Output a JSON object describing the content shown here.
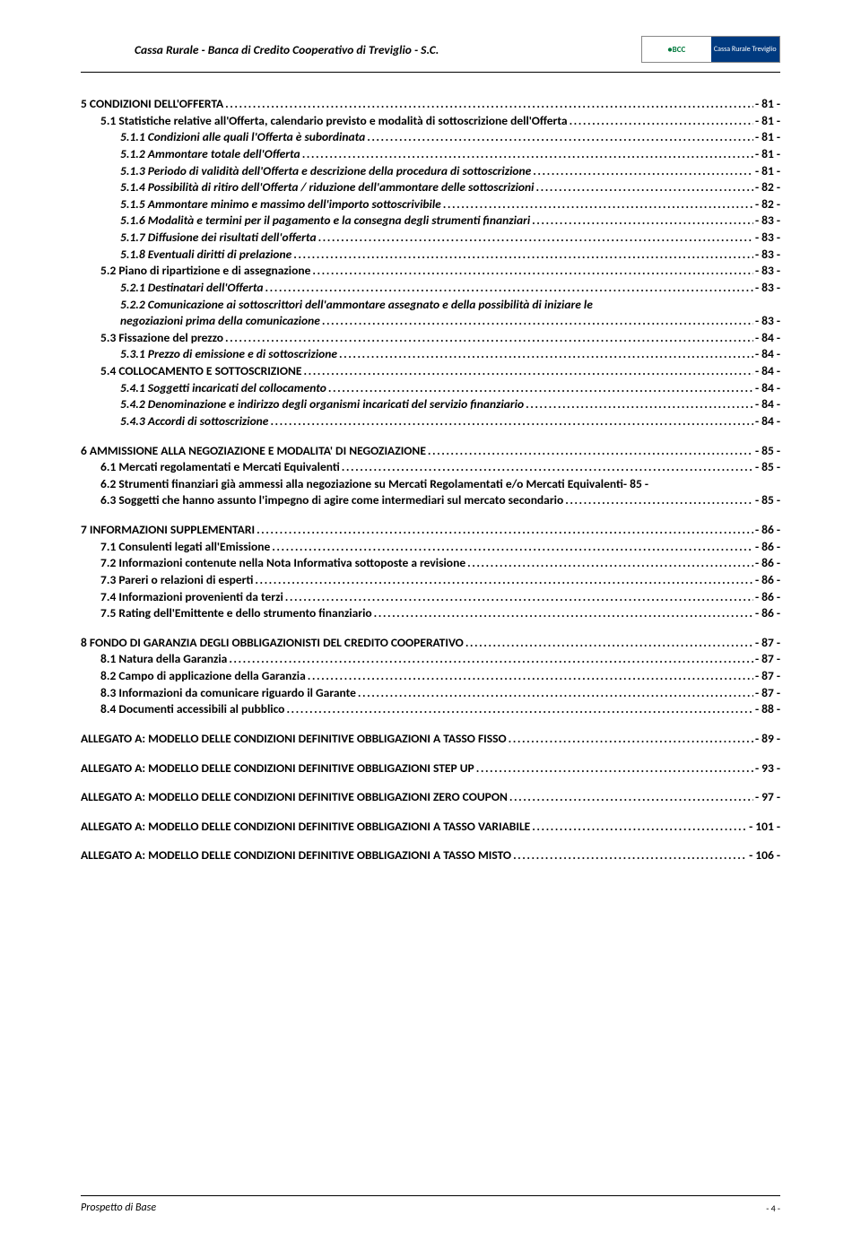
{
  "header": {
    "company": "Cassa Rurale - Banca di Credito Cooperativo di Treviglio - S.C.",
    "logo_left": "●BCC",
    "logo_right": "Cassa Rurale Treviglio"
  },
  "toc": [
    {
      "type": "group",
      "lines": [
        {
          "level": 0,
          "style": "sc",
          "label": "5 CONDIZIONI DELL'OFFERTA",
          "page": "- 81 -"
        },
        {
          "level": 1,
          "label": "5.1 Statistiche relative all'Offerta, calendario previsto e modalità di sottoscrizione dell'Offerta",
          "page": "- 81 -"
        },
        {
          "level": 2,
          "style": "italic",
          "label": "5.1.1 Condizioni alle quali l'Offerta è subordinata",
          "page": "- 81 -"
        },
        {
          "level": 2,
          "style": "italic",
          "label": "5.1.2 Ammontare totale dell'Offerta",
          "page": "- 81 -"
        },
        {
          "level": 2,
          "style": "italic",
          "label": "5.1.3 Periodo di validità dell'Offerta e descrizione della procedura di sottoscrizione",
          "page": "- 81 -"
        },
        {
          "level": 2,
          "style": "italic",
          "label": "5.1.4 Possibilità di ritiro dell'Offerta / riduzione dell'ammontare delle sottoscrizioni",
          "page": "- 82 -"
        },
        {
          "level": 2,
          "style": "italic",
          "label": "5.1.5 Ammontare minimo e massimo dell'importo sottoscrivibile",
          "page": "- 82 -"
        },
        {
          "level": 2,
          "style": "italic",
          "label": "5.1.6 Modalità e termini per il pagamento e la consegna degli strumenti finanziari",
          "page": "- 83 -"
        },
        {
          "level": 2,
          "style": "italic",
          "label": "5.1.7 Diffusione dei risultati dell'offerta",
          "page": "- 83 -"
        },
        {
          "level": 2,
          "style": "italic",
          "label": "5.1.8 Eventuali diritti di prelazione",
          "page": "- 83 -"
        },
        {
          "level": 1,
          "label": "5.2 Piano di ripartizione e di assegnazione",
          "page": "- 83 -"
        },
        {
          "level": 2,
          "style": "italic",
          "label": "5.2.1 Destinatari dell'Offerta",
          "page": "- 83 -"
        },
        {
          "level": 2,
          "style": "italic-multi",
          "first": "5.2.2 Comunicazione ai sottoscrittori dell'ammontare assegnato e della possibilità di iniziare le",
          "cont": "negoziazioni prima della comunicazione",
          "page": "- 83 -"
        },
        {
          "level": 1,
          "label": "5.3 Fissazione del prezzo",
          "page": "- 84 -"
        },
        {
          "level": 2,
          "style": "italic",
          "label": "5.3.1 Prezzo di emissione e di sottoscrizione",
          "page": "- 84 -"
        },
        {
          "level": 1,
          "style": "sc",
          "label": "5.4 COLLOCAMENTO E SOTTOSCRIZIONE",
          "page": "- 84 -"
        },
        {
          "level": 2,
          "style": "italic",
          "label": "5.4.1 Soggetti incaricati del collocamento",
          "page": "- 84 -"
        },
        {
          "level": 2,
          "style": "italic",
          "label": "5.4.2 Denominazione e indirizzo degli organismi incaricati del servizio finanziario",
          "page": "- 84 -"
        },
        {
          "level": 2,
          "style": "italic",
          "label": "5.4.3 Accordi di sottoscrizione",
          "page": "- 84 -"
        }
      ]
    },
    {
      "type": "group",
      "lines": [
        {
          "level": 0,
          "label": "6 AMMISSIONE ALLA NEGOZIAZIONE E MODALITA' DI NEGOZIAZIONE",
          "page": "- 85 -"
        },
        {
          "level": 1,
          "label": "6.1 Mercati regolamentati e Mercati Equivalenti",
          "page": "- 85 -"
        },
        {
          "level": 1,
          "label": "6.2 Strumenti finanziari già ammessi alla negoziazione su Mercati Regolamentati e/o Mercati Equivalenti",
          "page": "- 85 -",
          "nodots": true
        },
        {
          "level": 1,
          "label": "6.3 Soggetti che hanno assunto l'impegno di agire come intermediari sul mercato secondario",
          "page": "- 85 -"
        }
      ]
    },
    {
      "type": "group",
      "lines": [
        {
          "level": 0,
          "label": "7 INFORMAZIONI SUPPLEMENTARI",
          "page": "- 86 -"
        },
        {
          "level": 1,
          "label": "7.1 Consulenti legati all'Emissione",
          "page": "- 86 -"
        },
        {
          "level": 1,
          "label": "7.2 Informazioni contenute nella Nota Informativa sottoposte a revisione",
          "page": "- 86 -"
        },
        {
          "level": 1,
          "label": "7.3 Pareri o relazioni di esperti",
          "page": "- 86 -"
        },
        {
          "level": 1,
          "label": "7.4 Informazioni provenienti da terzi",
          "page": "- 86 -"
        },
        {
          "level": 1,
          "label": "7.5 Rating dell'Emittente e dello strumento finanziario",
          "page": "- 86 -"
        }
      ]
    },
    {
      "type": "group",
      "lines": [
        {
          "level": 0,
          "label": "8 FONDO DI GARANZIA DEGLI OBBLIGAZIONISTI DEL CREDITO COOPERATIVO",
          "page": "- 87 -"
        },
        {
          "level": 1,
          "label": "8.1 Natura della Garanzia",
          "page": "- 87 -"
        },
        {
          "level": 1,
          "label": "8.2 Campo di applicazione della Garanzia",
          "page": "- 87 -"
        },
        {
          "level": 1,
          "label": "8.3 Informazioni da comunicare riguardo il Garante",
          "page": "- 87 -"
        },
        {
          "level": 1,
          "label": "8.4 Documenti accessibili al pubblico",
          "page": "- 88 -"
        }
      ]
    },
    {
      "type": "group",
      "lines": [
        {
          "level": 0,
          "label": "ALLEGATO A: MODELLO DELLE CONDIZIONI DEFINITIVE OBBLIGAZIONI A TASSO FISSO",
          "page": "- 89 -"
        }
      ]
    },
    {
      "type": "group",
      "lines": [
        {
          "level": 0,
          "label": "ALLEGATO A: MODELLO DELLE CONDIZIONI DEFINITIVE OBBLIGAZIONI STEP UP",
          "page": "- 93 -"
        }
      ]
    },
    {
      "type": "group",
      "lines": [
        {
          "level": 0,
          "label": "ALLEGATO A: MODELLO DELLE CONDIZIONI DEFINITIVE OBBLIGAZIONI ZERO COUPON",
          "page": "- 97 -"
        }
      ]
    },
    {
      "type": "group",
      "lines": [
        {
          "level": 0,
          "label": "ALLEGATO A: MODELLO DELLE CONDIZIONI DEFINITIVE OBBLIGAZIONI A TASSO VARIABILE",
          "page": "- 101 -"
        }
      ]
    },
    {
      "type": "group",
      "lines": [
        {
          "level": 0,
          "label": "ALLEGATO A: MODELLO DELLE CONDIZIONI DEFINITIVE OBBLIGAZIONI A TASSO MISTO",
          "page": "- 106 -"
        }
      ]
    }
  ],
  "footer": {
    "left": "Prospetto di Base",
    "right": "- 4 -"
  }
}
